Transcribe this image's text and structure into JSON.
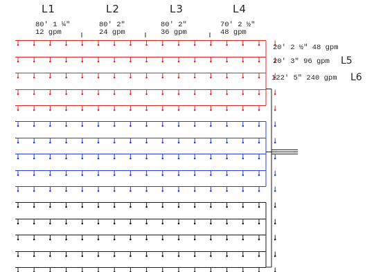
{
  "colors": {
    "red_group": "#e8262a",
    "blue_group": "#2a3cd8",
    "black_group": "#1a1a1a",
    "text": "#222222"
  },
  "loops": [
    {
      "name": "L1",
      "length": "80' 1 ¼\"",
      "flow": "12 gpm"
    },
    {
      "name": "L2",
      "length": "80' 2\"",
      "flow": "24 gpm"
    },
    {
      "name": "L3",
      "length": "80' 2\"",
      "flow": "36 gpm"
    },
    {
      "name": "L4",
      "length": "70' 2 ½\"",
      "flow": "48 gpm"
    }
  ],
  "side_labels": {
    "s1": "20' 2 ½\" 48 gpm",
    "s2": "20' 3\" 96 gpm",
    "l5": "L5",
    "s3": "122' 5\" 240 gpm",
    "l6": "L6"
  },
  "groups": [
    {
      "name": "red",
      "color": "#e8262a",
      "rows": 5
    },
    {
      "name": "blue",
      "color": "#2a3cd8",
      "rows": 5
    },
    {
      "name": "black",
      "color": "#1a1a1a",
      "rows": 5
    }
  ],
  "sprinklers_per_row": 17
}
